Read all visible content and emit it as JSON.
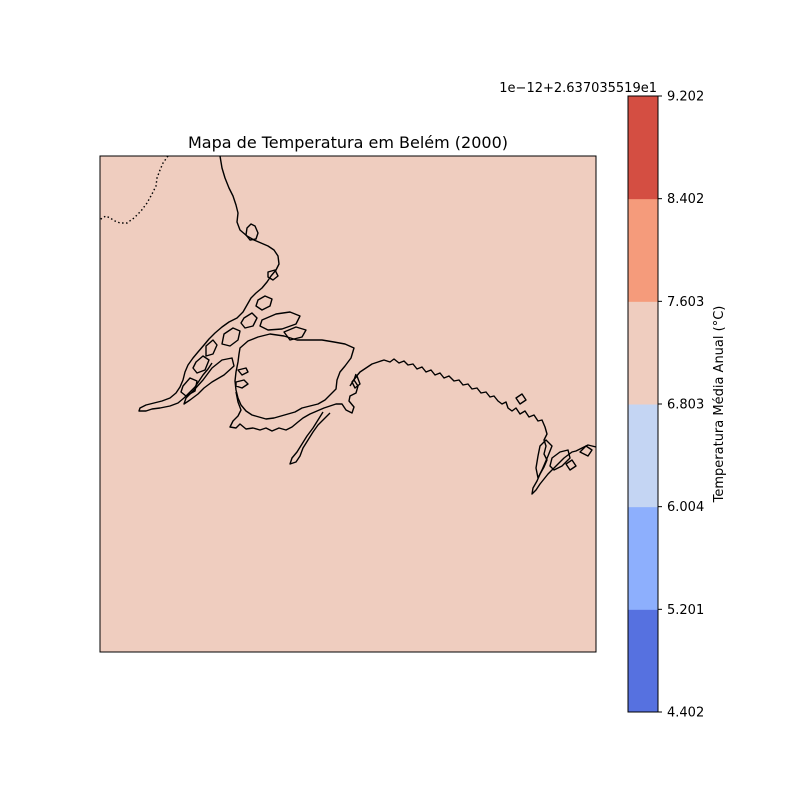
{
  "map": {
    "title": "Mapa de Temperatura em Belém (2000)",
    "fill_color": "#efcdbf",
    "frame_color": "#000000",
    "coastline_color": "#000000",
    "border_style": "dotted"
  },
  "colorbar": {
    "offset_label": "1e−12+2.637035519e1",
    "label": "Temperatura Média Anual (°C)",
    "ticks": [
      "4.402",
      "5.201",
      "6.004",
      "6.803",
      "7.603",
      "8.402",
      "9.202"
    ],
    "bands": [
      {
        "from": 4.402,
        "to": 5.201,
        "color": "#5671e0"
      },
      {
        "from": 5.201,
        "to": 6.004,
        "color": "#8daffd"
      },
      {
        "from": 6.004,
        "to": 6.803,
        "color": "#c4d5f3"
      },
      {
        "from": 6.803,
        "to": 7.603,
        "color": "#efcdbf"
      },
      {
        "from": 7.603,
        "to": 8.402,
        "color": "#f59b7b"
      },
      {
        "from": 8.402,
        "to": 9.202,
        "color": "#d44e42"
      }
    ]
  }
}
